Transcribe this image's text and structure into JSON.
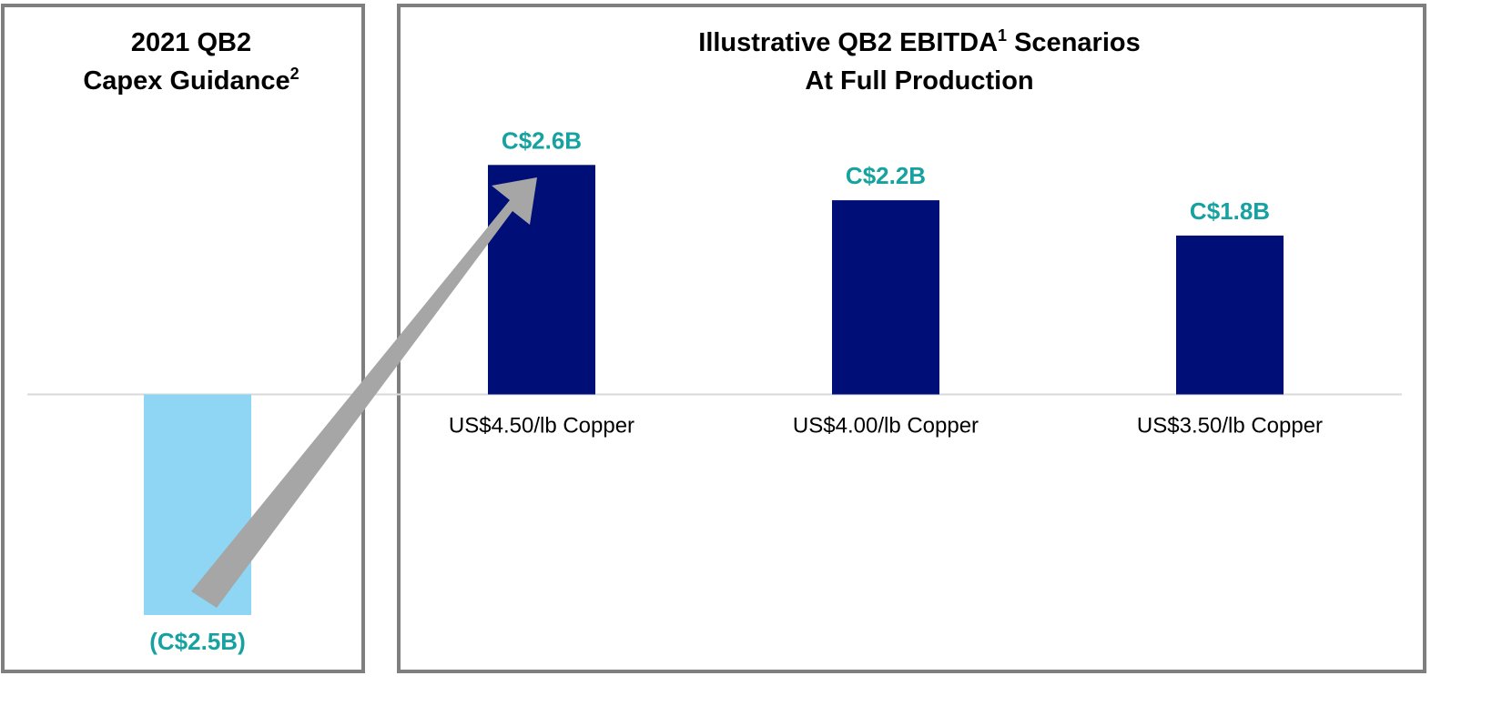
{
  "chart_data": [
    {
      "type": "bar",
      "title": [
        [
          {
            "text": "2021 QB2",
            "superscript": false
          }
        ],
        [
          {
            "text": "Capex Guidance",
            "superscript": false
          },
          {
            "text": "2",
            "superscript": true
          }
        ]
      ],
      "categories": [
        null
      ],
      "values": [
        -2.5
      ],
      "value_labels": [
        "(C$2.5B)"
      ],
      "color": "#8fd6f5",
      "label_color": "#16a2a0",
      "ylim": [
        -3.5,
        4.5
      ]
    },
    {
      "type": "bar",
      "title": [
        [
          {
            "text": "Illustrative QB2 EBITDA",
            "superscript": false
          },
          {
            "text": "1",
            "superscript": true
          },
          {
            "text": " Scenarios",
            "superscript": false
          }
        ],
        [
          {
            "text": "At Full Production",
            "superscript": false
          }
        ]
      ],
      "categories": [
        "US$4.50/lb Copper",
        "US$4.00/lb Copper",
        "US$3.50/lb Copper"
      ],
      "values": [
        2.6,
        2.2,
        1.8
      ],
      "value_labels": [
        "C$2.6B",
        "C$2.2B",
        "C$1.8B"
      ],
      "color": "#000f78",
      "label_color": "#16a2a0",
      "ylim": [
        -3.5,
        4.5
      ]
    }
  ]
}
